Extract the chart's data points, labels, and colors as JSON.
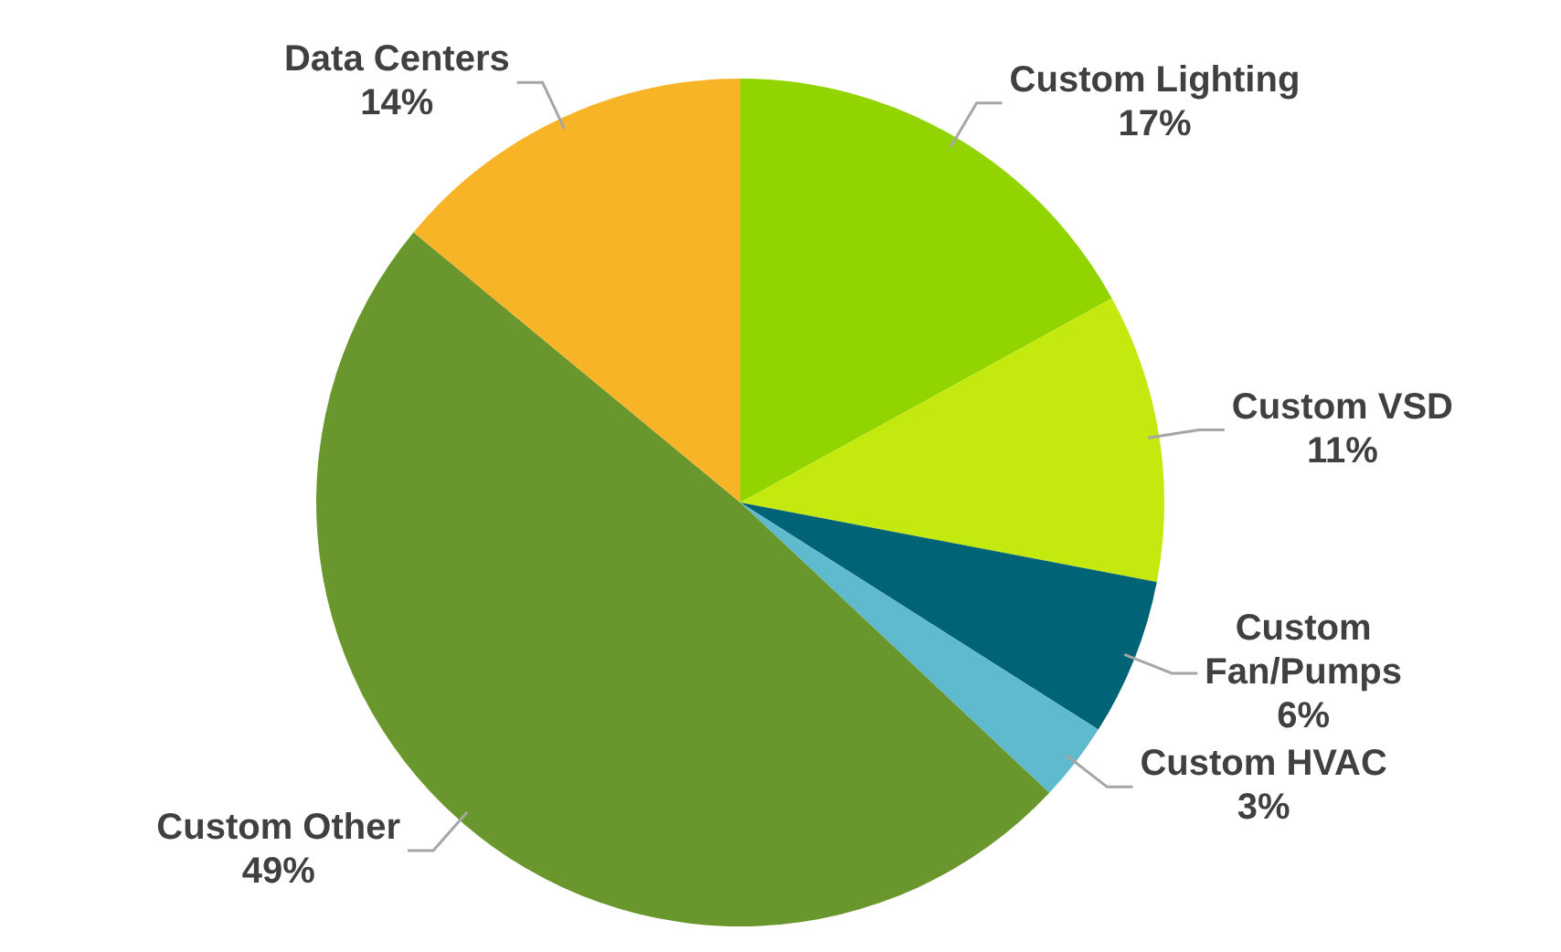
{
  "chart_data": {
    "type": "pie",
    "categories": [
      "Custom Lighting",
      "Custom VSD",
      "Custom Fan/Pumps",
      "Custom HVAC",
      "Custom Other",
      "Data Centers"
    ],
    "values": [
      17,
      11,
      6,
      3,
      49,
      14
    ],
    "value_labels": [
      "17%",
      "11%",
      "6%",
      "3%",
      "49%",
      "14%"
    ],
    "colors": [
      "#92d400",
      "#c4e90f",
      "#006476",
      "#5fbacd",
      "#6a972d",
      "#f8b427"
    ],
    "legend": false
  }
}
